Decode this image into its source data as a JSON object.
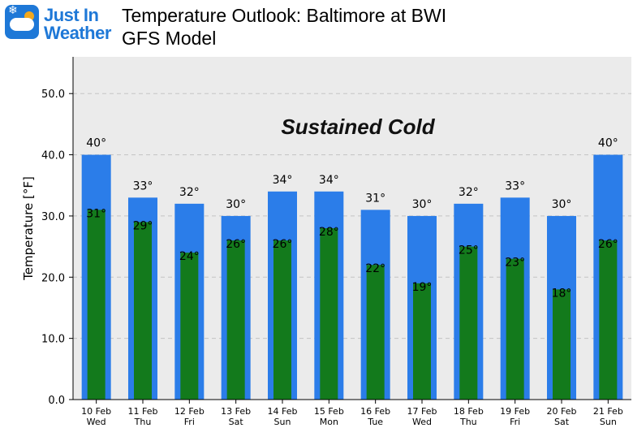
{
  "logo": {
    "line1": "Just In",
    "line2": "Weather",
    "icon": "snowflake-cloud-sun-icon"
  },
  "header": {
    "title": "Temperature Outlook: Baltimore at BWI",
    "subtitle": "GFS Model"
  },
  "colors": {
    "high": "#2b7de9",
    "low": "#137a1c",
    "plot_bg": "#ebebeb",
    "brand": "#1e78d7"
  },
  "chart_data": {
    "type": "bar",
    "annotation": "Sustained Cold",
    "ylabel": "Temperature [°F]",
    "xlabel": "",
    "ylim": [
      0,
      56
    ],
    "yticks": [
      "0.0",
      "10.0",
      "20.0",
      "30.0",
      "40.0",
      "50.0"
    ],
    "categories": [
      [
        "10 Feb",
        "Wed"
      ],
      [
        "11 Feb",
        "Thu"
      ],
      [
        "12 Feb",
        "Fri"
      ],
      [
        "13 Feb",
        "Sat"
      ],
      [
        "14 Feb",
        "Sun"
      ],
      [
        "15 Feb",
        "Mon"
      ],
      [
        "16 Feb",
        "Tue"
      ],
      [
        "17 Feb",
        "Wed"
      ],
      [
        "18 Feb",
        "Thu"
      ],
      [
        "19 Feb",
        "Fri"
      ],
      [
        "20 Feb",
        "Sat"
      ],
      [
        "21 Feb",
        "Sun"
      ]
    ],
    "series": [
      {
        "key": "high",
        "values": [
          40,
          33,
          32,
          30,
          34,
          34,
          31,
          30,
          32,
          33,
          30,
          40
        ],
        "labels": [
          "40°",
          "33°",
          "32°",
          "30°",
          "34°",
          "34°",
          "31°",
          "30°",
          "32°",
          "33°",
          "30°",
          "40°"
        ]
      },
      {
        "key": "low",
        "values": [
          31,
          29,
          24,
          26,
          26,
          28,
          22,
          19,
          25,
          23,
          18,
          26
        ],
        "labels": [
          "31°",
          "29°",
          "24°",
          "26°",
          "26°",
          "28°",
          "22°",
          "19°",
          "25°",
          "23°",
          "18°",
          "26°"
        ]
      }
    ],
    "grid": true
  }
}
